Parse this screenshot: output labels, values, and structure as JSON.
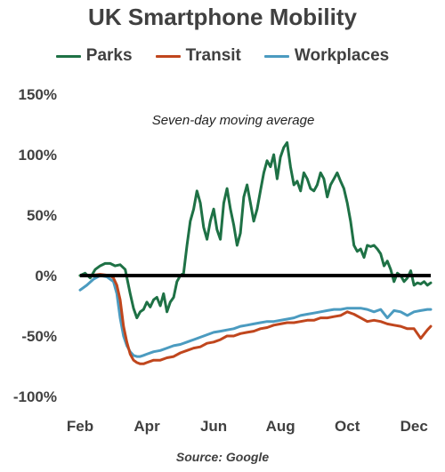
{
  "title": "UK Smartphone Mobility",
  "source": "Source: Google",
  "chart_data": {
    "type": "line",
    "title": "UK Smartphone Mobility",
    "annotation": "Seven-day moving average",
    "source": "Source: Google",
    "legend_position": "top",
    "grid": false,
    "y_unit": "%",
    "ylim": [
      -100,
      150
    ],
    "yticks": [
      150,
      100,
      50,
      0,
      -50,
      -100
    ],
    "ytick_labels": [
      "150%",
      "100%",
      "50%",
      "0%",
      "-50%",
      "-100%"
    ],
    "xlim": [
      0,
      10.5
    ],
    "xtick_positions": [
      0,
      2,
      4,
      6,
      8,
      10
    ],
    "xtick_labels": [
      "Feb",
      "Apr",
      "Jun",
      "Aug",
      "Oct",
      "Dec"
    ],
    "series": [
      {
        "name": "Parks",
        "color": "#1e7145",
        "x": [
          0.0,
          0.15,
          0.3,
          0.45,
          0.6,
          0.75,
          0.9,
          1.05,
          1.2,
          1.35,
          1.5,
          1.6,
          1.7,
          1.8,
          1.9,
          2.0,
          2.1,
          2.2,
          2.3,
          2.4,
          2.5,
          2.6,
          2.7,
          2.8,
          2.9,
          3.0,
          3.1,
          3.2,
          3.3,
          3.4,
          3.5,
          3.6,
          3.7,
          3.8,
          3.9,
          4.0,
          4.1,
          4.2,
          4.3,
          4.4,
          4.5,
          4.6,
          4.7,
          4.8,
          4.9,
          5.0,
          5.1,
          5.2,
          5.3,
          5.4,
          5.5,
          5.6,
          5.7,
          5.8,
          5.9,
          6.0,
          6.1,
          6.2,
          6.3,
          6.4,
          6.5,
          6.6,
          6.7,
          6.8,
          6.9,
          7.0,
          7.1,
          7.2,
          7.3,
          7.4,
          7.5,
          7.6,
          7.7,
          7.8,
          7.9,
          8.0,
          8.1,
          8.2,
          8.3,
          8.4,
          8.5,
          8.6,
          8.7,
          8.8,
          8.9,
          9.0,
          9.1,
          9.2,
          9.3,
          9.4,
          9.5,
          9.6,
          9.7,
          9.8,
          9.9,
          10.0,
          10.1,
          10.2,
          10.3,
          10.4,
          10.5
        ],
        "values": [
          0,
          2,
          -2,
          5,
          8,
          10,
          10,
          8,
          9,
          5,
          -15,
          -27,
          -35,
          -30,
          -28,
          -22,
          -26,
          -20,
          -18,
          -25,
          -15,
          -30,
          -22,
          -18,
          -5,
          0,
          2,
          25,
          45,
          55,
          70,
          60,
          40,
          30,
          45,
          55,
          38,
          30,
          60,
          72,
          55,
          42,
          25,
          35,
          65,
          75,
          60,
          45,
          55,
          70,
          85,
          95,
          90,
          100,
          80,
          98,
          106,
          110,
          90,
          75,
          78,
          70,
          85,
          80,
          72,
          70,
          75,
          85,
          80,
          65,
          75,
          80,
          85,
          78,
          72,
          60,
          45,
          25,
          20,
          22,
          15,
          25,
          24,
          25,
          22,
          18,
          8,
          12,
          5,
          -5,
          2,
          0,
          -5,
          -2,
          4,
          -8,
          -6,
          -7,
          -5,
          -8,
          -6
        ]
      },
      {
        "name": "Transit",
        "color": "#c0461d",
        "x": [
          0.0,
          0.3,
          0.6,
          0.9,
          1.0,
          1.1,
          1.2,
          1.3,
          1.4,
          1.5,
          1.6,
          1.7,
          1.8,
          1.9,
          2.0,
          2.2,
          2.4,
          2.6,
          2.8,
          3.0,
          3.2,
          3.4,
          3.6,
          3.8,
          4.0,
          4.2,
          4.4,
          4.6,
          4.8,
          5.0,
          5.2,
          5.4,
          5.6,
          5.8,
          6.0,
          6.2,
          6.4,
          6.6,
          6.8,
          7.0,
          7.2,
          7.4,
          7.6,
          7.8,
          8.0,
          8.2,
          8.4,
          8.6,
          8.8,
          9.0,
          9.2,
          9.4,
          9.6,
          9.8,
          10.0,
          10.2,
          10.4,
          10.5
        ],
        "values": [
          0,
          0,
          1,
          0,
          -2,
          -8,
          -20,
          -42,
          -55,
          -65,
          -70,
          -72,
          -73,
          -73,
          -72,
          -70,
          -70,
          -68,
          -67,
          -64,
          -62,
          -60,
          -59,
          -56,
          -55,
          -53,
          -50,
          -50,
          -48,
          -47,
          -46,
          -44,
          -43,
          -41,
          -40,
          -39,
          -39,
          -38,
          -37,
          -37,
          -35,
          -35,
          -34,
          -33,
          -30,
          -32,
          -35,
          -38,
          -37,
          -38,
          -40,
          -41,
          -42,
          -44,
          -44,
          -52,
          -45,
          -42
        ]
      },
      {
        "name": "Workplaces",
        "color": "#4b9bc0",
        "x": [
          0.0,
          0.2,
          0.4,
          0.6,
          0.8,
          1.0,
          1.1,
          1.2,
          1.3,
          1.4,
          1.5,
          1.6,
          1.7,
          1.8,
          1.9,
          2.0,
          2.2,
          2.4,
          2.6,
          2.8,
          3.0,
          3.2,
          3.4,
          3.6,
          3.8,
          4.0,
          4.2,
          4.4,
          4.6,
          4.8,
          5.0,
          5.2,
          5.4,
          5.6,
          5.8,
          6.0,
          6.2,
          6.4,
          6.6,
          6.8,
          7.0,
          7.2,
          7.4,
          7.6,
          7.8,
          8.0,
          8.2,
          8.4,
          8.6,
          8.8,
          9.0,
          9.2,
          9.4,
          9.6,
          9.8,
          10.0,
          10.2,
          10.4,
          10.5
        ],
        "values": [
          -12,
          -8,
          -3,
          0,
          -1,
          -5,
          -15,
          -35,
          -50,
          -58,
          -63,
          -66,
          -67,
          -67,
          -66,
          -65,
          -63,
          -62,
          -60,
          -58,
          -57,
          -55,
          -53,
          -51,
          -49,
          -47,
          -46,
          -45,
          -44,
          -42,
          -41,
          -40,
          -39,
          -38,
          -38,
          -37,
          -36,
          -35,
          -33,
          -32,
          -31,
          -30,
          -29,
          -28,
          -28,
          -27,
          -27,
          -27,
          -28,
          -30,
          -28,
          -35,
          -29,
          -30,
          -33,
          -30,
          -29,
          -28,
          -28
        ]
      }
    ]
  }
}
